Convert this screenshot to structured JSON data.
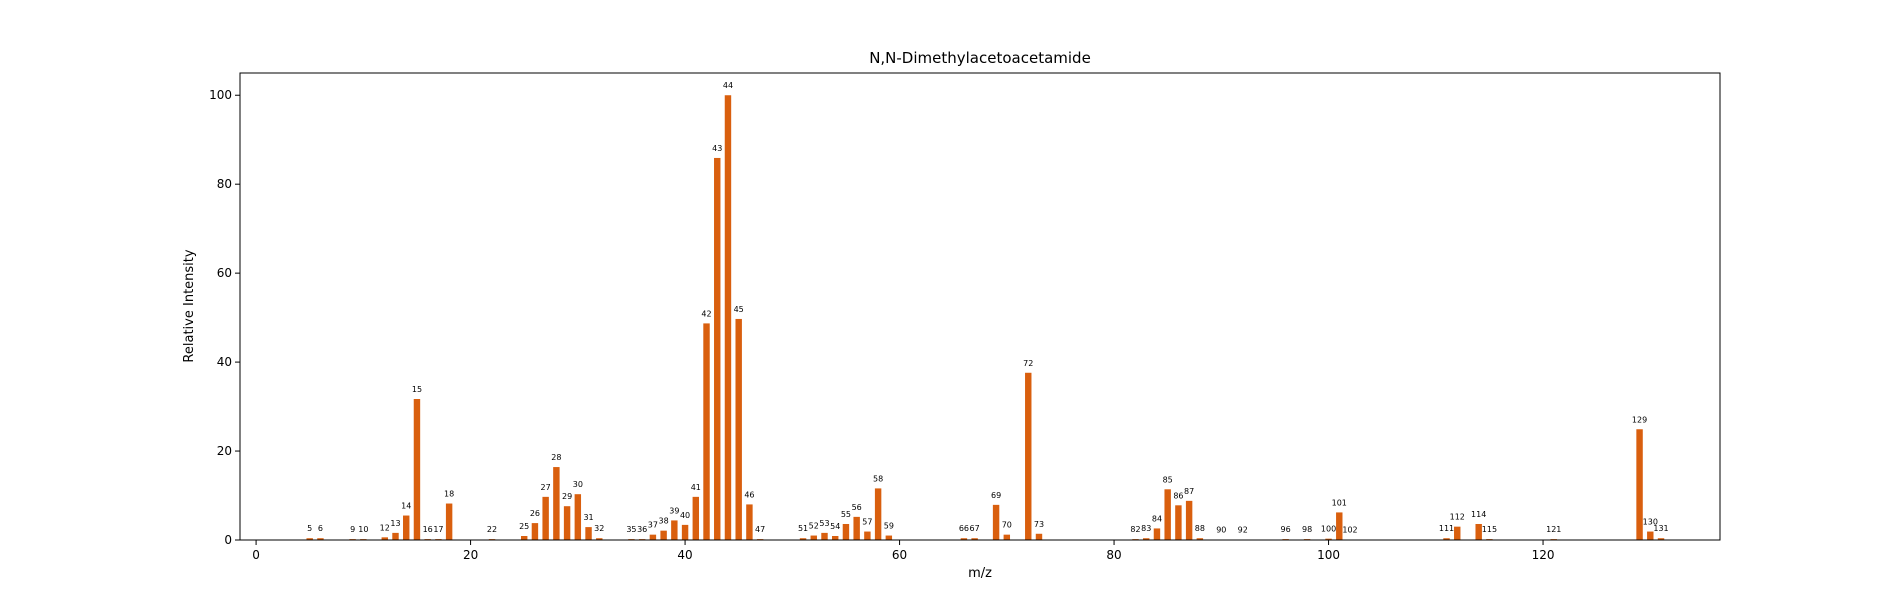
{
  "chart_data": {
    "type": "bar",
    "title": "N,N-Dimethylacetoacetamide",
    "xlabel": "m/z",
    "ylabel": "Relative Intensity",
    "xlim": [
      -1.5,
      136.5
    ],
    "ylim": [
      0,
      105
    ],
    "xticks": [
      0,
      20,
      40,
      60,
      80,
      100,
      120
    ],
    "yticks": [
      0,
      20,
      40,
      60,
      80,
      100
    ],
    "grid": false,
    "color": "#d95f0e",
    "x": [
      5,
      6,
      9,
      10,
      12,
      13,
      14,
      15,
      16,
      17,
      18,
      22,
      25,
      26,
      27,
      28,
      29,
      30,
      31,
      32,
      35,
      36,
      37,
      38,
      39,
      40,
      41,
      42,
      43,
      44,
      45,
      46,
      47,
      51,
      52,
      53,
      54,
      55,
      56,
      57,
      58,
      59,
      66,
      67,
      69,
      70,
      72,
      73,
      82,
      83,
      84,
      85,
      86,
      87,
      88,
      90,
      92,
      96,
      98,
      100,
      101,
      102,
      111,
      112,
      114,
      115,
      121,
      129,
      130,
      131
    ],
    "values": [
      0.4,
      0.4,
      0.2,
      0.2,
      0.6,
      1.6,
      5.5,
      31.7,
      0.2,
      0.2,
      8.2,
      0.2,
      0.9,
      3.8,
      9.7,
      16.4,
      7.6,
      10.3,
      2.9,
      0.4,
      0.2,
      0.2,
      1.2,
      2.1,
      4.4,
      3.4,
      9.7,
      48.7,
      85.9,
      100.0,
      49.7,
      8.0,
      0.2,
      0.4,
      1.0,
      1.6,
      0.9,
      3.6,
      5.2,
      1.9,
      11.6,
      1.0,
      0.4,
      0.4,
      7.9,
      1.2,
      37.6,
      1.4,
      0.2,
      0.4,
      2.6,
      11.4,
      7.8,
      8.8,
      0.4,
      0.1,
      0.1,
      0.2,
      0.2,
      0.3,
      6.2,
      0.1,
      0.4,
      3.0,
      3.6,
      0.2,
      0.2,
      24.9,
      1.9,
      0.4
    ]
  }
}
